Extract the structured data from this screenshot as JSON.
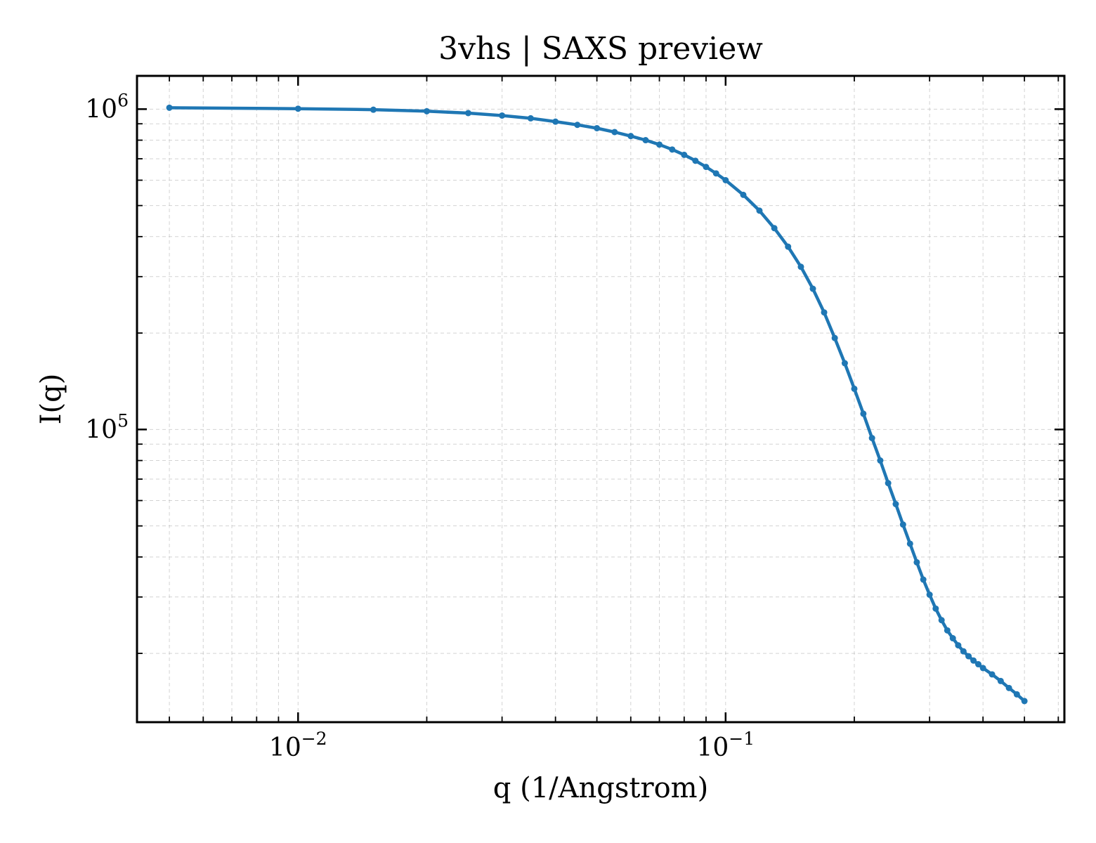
{
  "chart_data": {
    "type": "line",
    "title": "3vhs | SAXS preview",
    "xlabel": "q (1/Angstrom)",
    "ylabel": "I(q)",
    "xscale": "log",
    "yscale": "log",
    "xlim": [
      0.0042,
      0.62
    ],
    "ylim": [
      12200,
      1270000
    ],
    "grid": true,
    "legend": "none",
    "color": "#1f77b4",
    "x_ticks": [
      {
        "base": "10",
        "exp": "−2",
        "value": 0.01
      },
      {
        "base": "10",
        "exp": "−1",
        "value": 0.1
      }
    ],
    "y_ticks": [
      {
        "base": "10",
        "exp": "5",
        "value": 100000
      },
      {
        "base": "10",
        "exp": "6",
        "value": 1000000
      }
    ],
    "series": [
      {
        "x": [
          0.005,
          0.01,
          0.015,
          0.02,
          0.025,
          0.03,
          0.035,
          0.04,
          0.045,
          0.05,
          0.055,
          0.06,
          0.065,
          0.07,
          0.075,
          0.08,
          0.085,
          0.09,
          0.095,
          0.1,
          0.11,
          0.12,
          0.13,
          0.14,
          0.15,
          0.16,
          0.17,
          0.18,
          0.19,
          0.2,
          0.21,
          0.22,
          0.23,
          0.24,
          0.25,
          0.26,
          0.27,
          0.28,
          0.29,
          0.3,
          0.31,
          0.32,
          0.33,
          0.34,
          0.35,
          0.36,
          0.37,
          0.38,
          0.39,
          0.4,
          0.42,
          0.44,
          0.46,
          0.48,
          0.5
        ],
        "y": [
          1010000,
          1003000,
          996000,
          985000,
          972000,
          955000,
          936000,
          914000,
          893000,
          872000,
          848000,
          824000,
          800000,
          775000,
          748000,
          720000,
          690000,
          660000,
          630000,
          600000,
          540000,
          482000,
          425000,
          372000,
          322000,
          275000,
          232000,
          193000,
          161000,
          134000,
          112000,
          94000,
          80000,
          68000,
          58500,
          50500,
          44000,
          38500,
          34000,
          30500,
          27600,
          25400,
          23600,
          22300,
          21200,
          20300,
          19600,
          19000,
          18500,
          18000,
          17200,
          16400,
          15600,
          14900,
          14200
        ]
      }
    ]
  }
}
